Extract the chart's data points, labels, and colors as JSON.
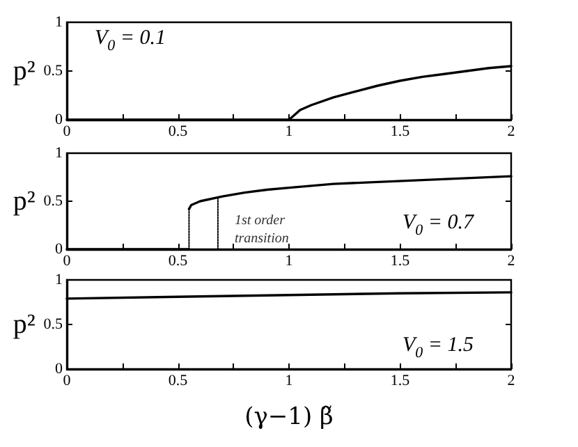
{
  "chart_data": [
    {
      "type": "line",
      "ylabel": "p²",
      "annotations": [
        "V$_{0}$ = 0.1"
      ],
      "xlim": [
        0,
        2
      ],
      "xticks": [
        0,
        {
          "value": 0.25,
          "label": null
        },
        0.5,
        {
          "value": 0.75,
          "label": null
        },
        1,
        {
          "value": 1.25,
          "label": null
        },
        1.5,
        {
          "value": 1.75,
          "label": null
        },
        2
      ],
      "ylim": [
        0,
        1
      ],
      "yticks": [
        0,
        0.5,
        1
      ],
      "grid": false,
      "marker": "none",
      "series": [
        {
          "color": "#000000",
          "x": [
            0,
            0.5,
            1,
            1.05,
            1.1,
            1.2,
            1.3,
            1.4,
            1.5,
            1.6,
            1.7,
            1.8,
            1.9,
            2
          ],
          "values": [
            0,
            0,
            0,
            0.1,
            0.15,
            0.23,
            0.29,
            0.35,
            0.4,
            0.44,
            0.47,
            0.5,
            0.53,
            0.55
          ]
        }
      ]
    },
    {
      "type": "line",
      "ylabel": "p²",
      "annotations": [
        "V$_{0}$ = 0.7",
        {
          "text": "1st order\ntransition",
          "x": 0.68,
          "y": 0.2
        }
      ],
      "xlim": [
        0,
        2
      ],
      "xticks": [
        0,
        {
          "value": 0.25,
          "label": null
        },
        0.5,
        {
          "value": 0.75,
          "label": null
        },
        1,
        {
          "value": 1.25,
          "label": null
        },
        1.5,
        {
          "value": 1.75,
          "label": null
        },
        2
      ],
      "ylim": [
        0,
        1
      ],
      "yticks": [
        0,
        0.5,
        1
      ],
      "grid": false,
      "marker": "none",
      "series": [
        {
          "color": "#000000",
          "x": [
            0,
            0.55
          ],
          "values": [
            0,
            0
          ]
        },
        {
          "color": "#000000",
          "x": [
            0.55,
            0.56,
            0.6,
            0.7,
            0.8,
            0.9,
            1,
            1.2,
            1.4,
            1.6,
            1.8,
            2
          ],
          "values": [
            0.42,
            0.46,
            0.5,
            0.55,
            0.59,
            0.62,
            0.64,
            0.68,
            0.7,
            0.72,
            0.74,
            0.76
          ]
        },
        {
          "color": "#000000",
          "line_style": "dotted",
          "x": [
            0.55,
            0.55
          ],
          "values": [
            0,
            0.42
          ]
        },
        {
          "color": "#000000",
          "line_style": "dotted",
          "x": [
            0.68,
            0.68
          ],
          "values": [
            0,
            0.54
          ]
        }
      ]
    },
    {
      "type": "line",
      "ylabel": "p²",
      "xlabel": "(γ−1) β̃",
      "annotations": [
        "V$_{0}$ = 1.5"
      ],
      "xlim": [
        0,
        2
      ],
      "xticks": [
        0,
        {
          "value": 0.25,
          "label": null
        },
        0.5,
        {
          "value": 0.75,
          "label": null
        },
        1,
        {
          "value": 1.25,
          "label": null
        },
        1.5,
        {
          "value": 1.75,
          "label": null
        },
        2
      ],
      "ylim": [
        0,
        1
      ],
      "yticks": [
        0,
        0.5,
        1
      ],
      "grid": false,
      "marker": "none",
      "series": [
        {
          "color": "#000000",
          "x": [
            0,
            0.5,
            1,
            1.5,
            2
          ],
          "values": [
            0.79,
            0.81,
            0.83,
            0.85,
            0.86
          ]
        }
      ]
    }
  ]
}
